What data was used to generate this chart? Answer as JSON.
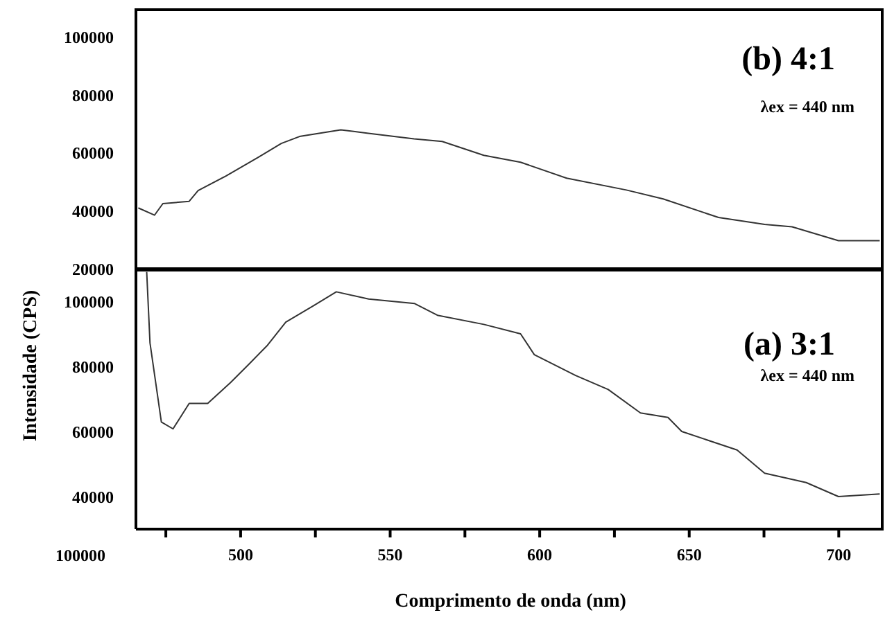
{
  "chart_data": [
    {
      "type": "line",
      "title": "(b) 4:1",
      "annotations": [
        "λex = 440 nm"
      ],
      "xlim": [
        465,
        715
      ],
      "ylim": [
        20000,
        110000
      ],
      "yticks": [
        20000,
        40000,
        60000,
        80000,
        100000
      ],
      "tick_labels": "y",
      "series": [
        {
          "color": "#333333",
          "x": [
            465.8,
            471.2,
            474,
            482.8,
            485.8,
            495,
            505.9,
            513.6,
            519.7,
            533.5,
            542.7,
            558,
            567.4,
            581.3,
            593.6,
            609,
            629,
            641.3,
            659.8,
            675.2,
            684.4,
            699.9,
            713.7
          ],
          "values": [
            41000,
            38500,
            42500,
            43300,
            47000,
            52000,
            58500,
            63300,
            65700,
            68000,
            66800,
            64900,
            64000,
            59200,
            56800,
            51300,
            47200,
            44100,
            37700,
            35300,
            34500,
            29700,
            29700
          ]
        }
      ]
    },
    {
      "type": "line",
      "title": "(a) 3:1",
      "annotations": [
        "λex = 440 nm",
        "100000"
      ],
      "xlabel": "Comprimento de onda (nm)",
      "ylabel": "Intensidade (CPS)",
      "xlim": [
        465,
        715
      ],
      "xticks": [
        {
          "value": 475,
          "label": null
        },
        500,
        {
          "value": 525,
          "label": null
        },
        550,
        {
          "value": 575,
          "label": null
        },
        600,
        {
          "value": 625,
          "label": null
        },
        650,
        {
          "value": 675,
          "label": null
        },
        700
      ],
      "ylim": [
        30000,
        110000
      ],
      "yticks": [
        40000,
        60000,
        80000,
        100000
      ],
      "series": [
        {
          "color": "#333333",
          "x": [
            468.6,
            469.7,
            473.5,
            477.4,
            482.8,
            489,
            496.6,
            502.8,
            509,
            515.1,
            524.3,
            532,
            542.8,
            558.2,
            565.8,
            581.3,
            593.6,
            598.2,
            612,
            622.9,
            633.7,
            642.9,
            647.5,
            666,
            675.2,
            689.1,
            699.9,
            713.7
          ],
          "values": [
            109000,
            87200,
            62900,
            60800,
            68600,
            68600,
            75000,
            80700,
            86500,
            93600,
            98600,
            102900,
            100700,
            99300,
            95700,
            92900,
            90000,
            83600,
            77200,
            72900,
            65700,
            64300,
            60000,
            54300,
            47200,
            44300,
            40000,
            40800
          ]
        }
      ]
    }
  ]
}
